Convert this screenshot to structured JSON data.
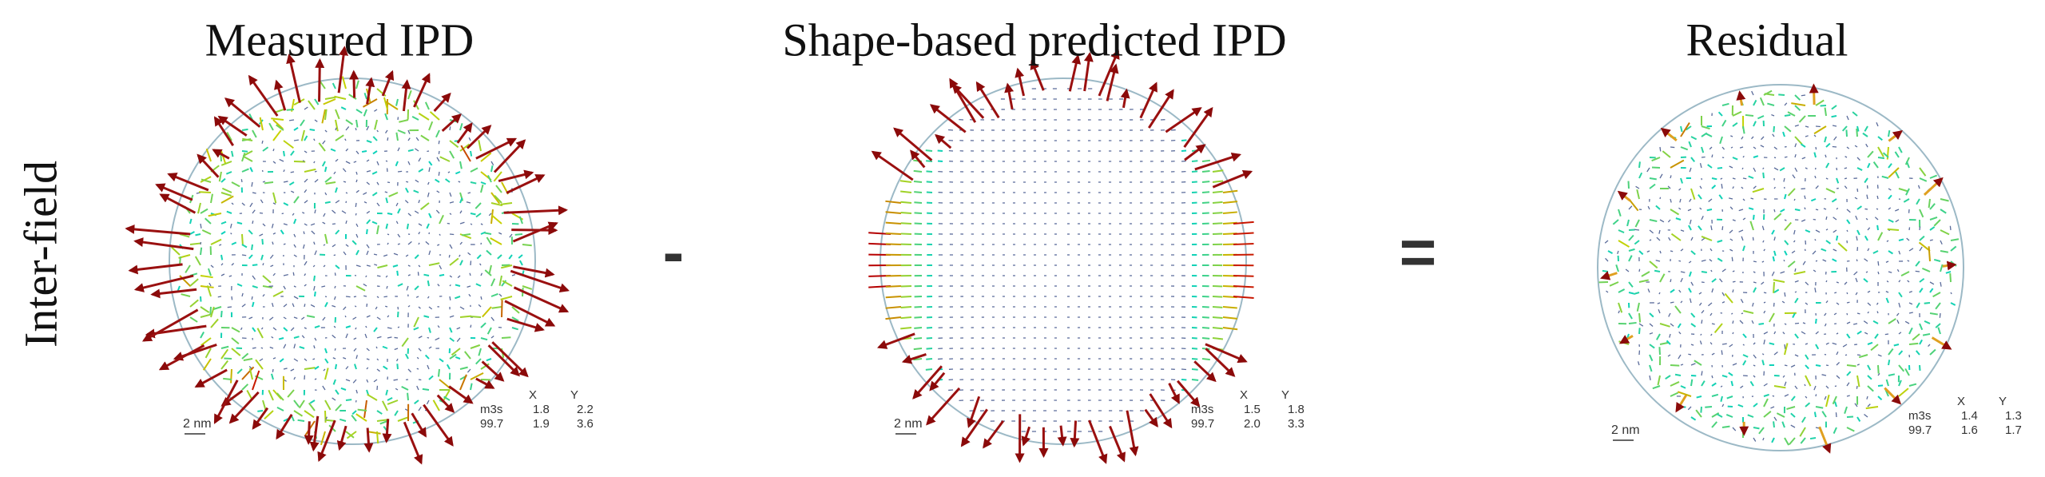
{
  "row_label": "Inter-field",
  "operators": [
    "-",
    "="
  ],
  "panels": [
    {
      "title": "Measured IPD",
      "scale": "2 nm",
      "stats": {
        "header": [
          "X",
          "Y"
        ],
        "rows": [
          [
            "m3s",
            "1.8",
            "2.2"
          ],
          [
            "99.7",
            "1.9",
            "3.6"
          ]
        ]
      }
    },
    {
      "title": "Shape-based predicted IPD",
      "scale": "2 nm",
      "stats": {
        "header": [
          "X",
          "Y"
        ],
        "rows": [
          [
            "m3s",
            "1.5",
            "1.8"
          ],
          [
            "99.7",
            "2.0",
            "3.3"
          ]
        ]
      }
    },
    {
      "title": "Residual",
      "scale": "2 nm",
      "stats": {
        "header": [
          "X",
          "Y"
        ],
        "rows": [
          [
            "m3s",
            "1.4",
            "1.3"
          ],
          [
            "99.7",
            "1.6",
            "1.7"
          ]
        ]
      }
    }
  ]
}
